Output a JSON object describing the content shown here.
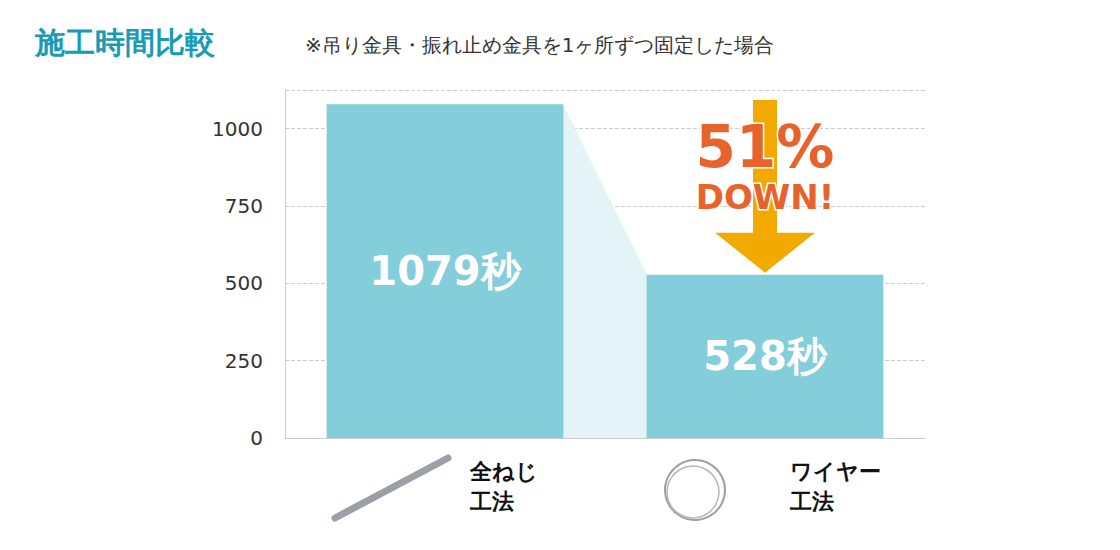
{
  "chart_data": {
    "type": "bar",
    "title": "施工時間比較",
    "subtitle": "※吊り金具・振れ止め金具を1ヶ所ずつ固定した場合",
    "categories": [
      "全ねじ\n工法",
      "ワイヤー\n工法"
    ],
    "values": [
      1079,
      528
    ],
    "value_labels": [
      "1079秒",
      "528秒"
    ],
    "color": "#84cddb",
    "data_labels": true,
    "ylim": [
      0,
      1125
    ],
    "yticks": [
      0,
      250,
      500,
      750,
      1000
    ],
    "grid": true,
    "annotations": [
      "51%",
      "DOWN!"
    ]
  }
}
